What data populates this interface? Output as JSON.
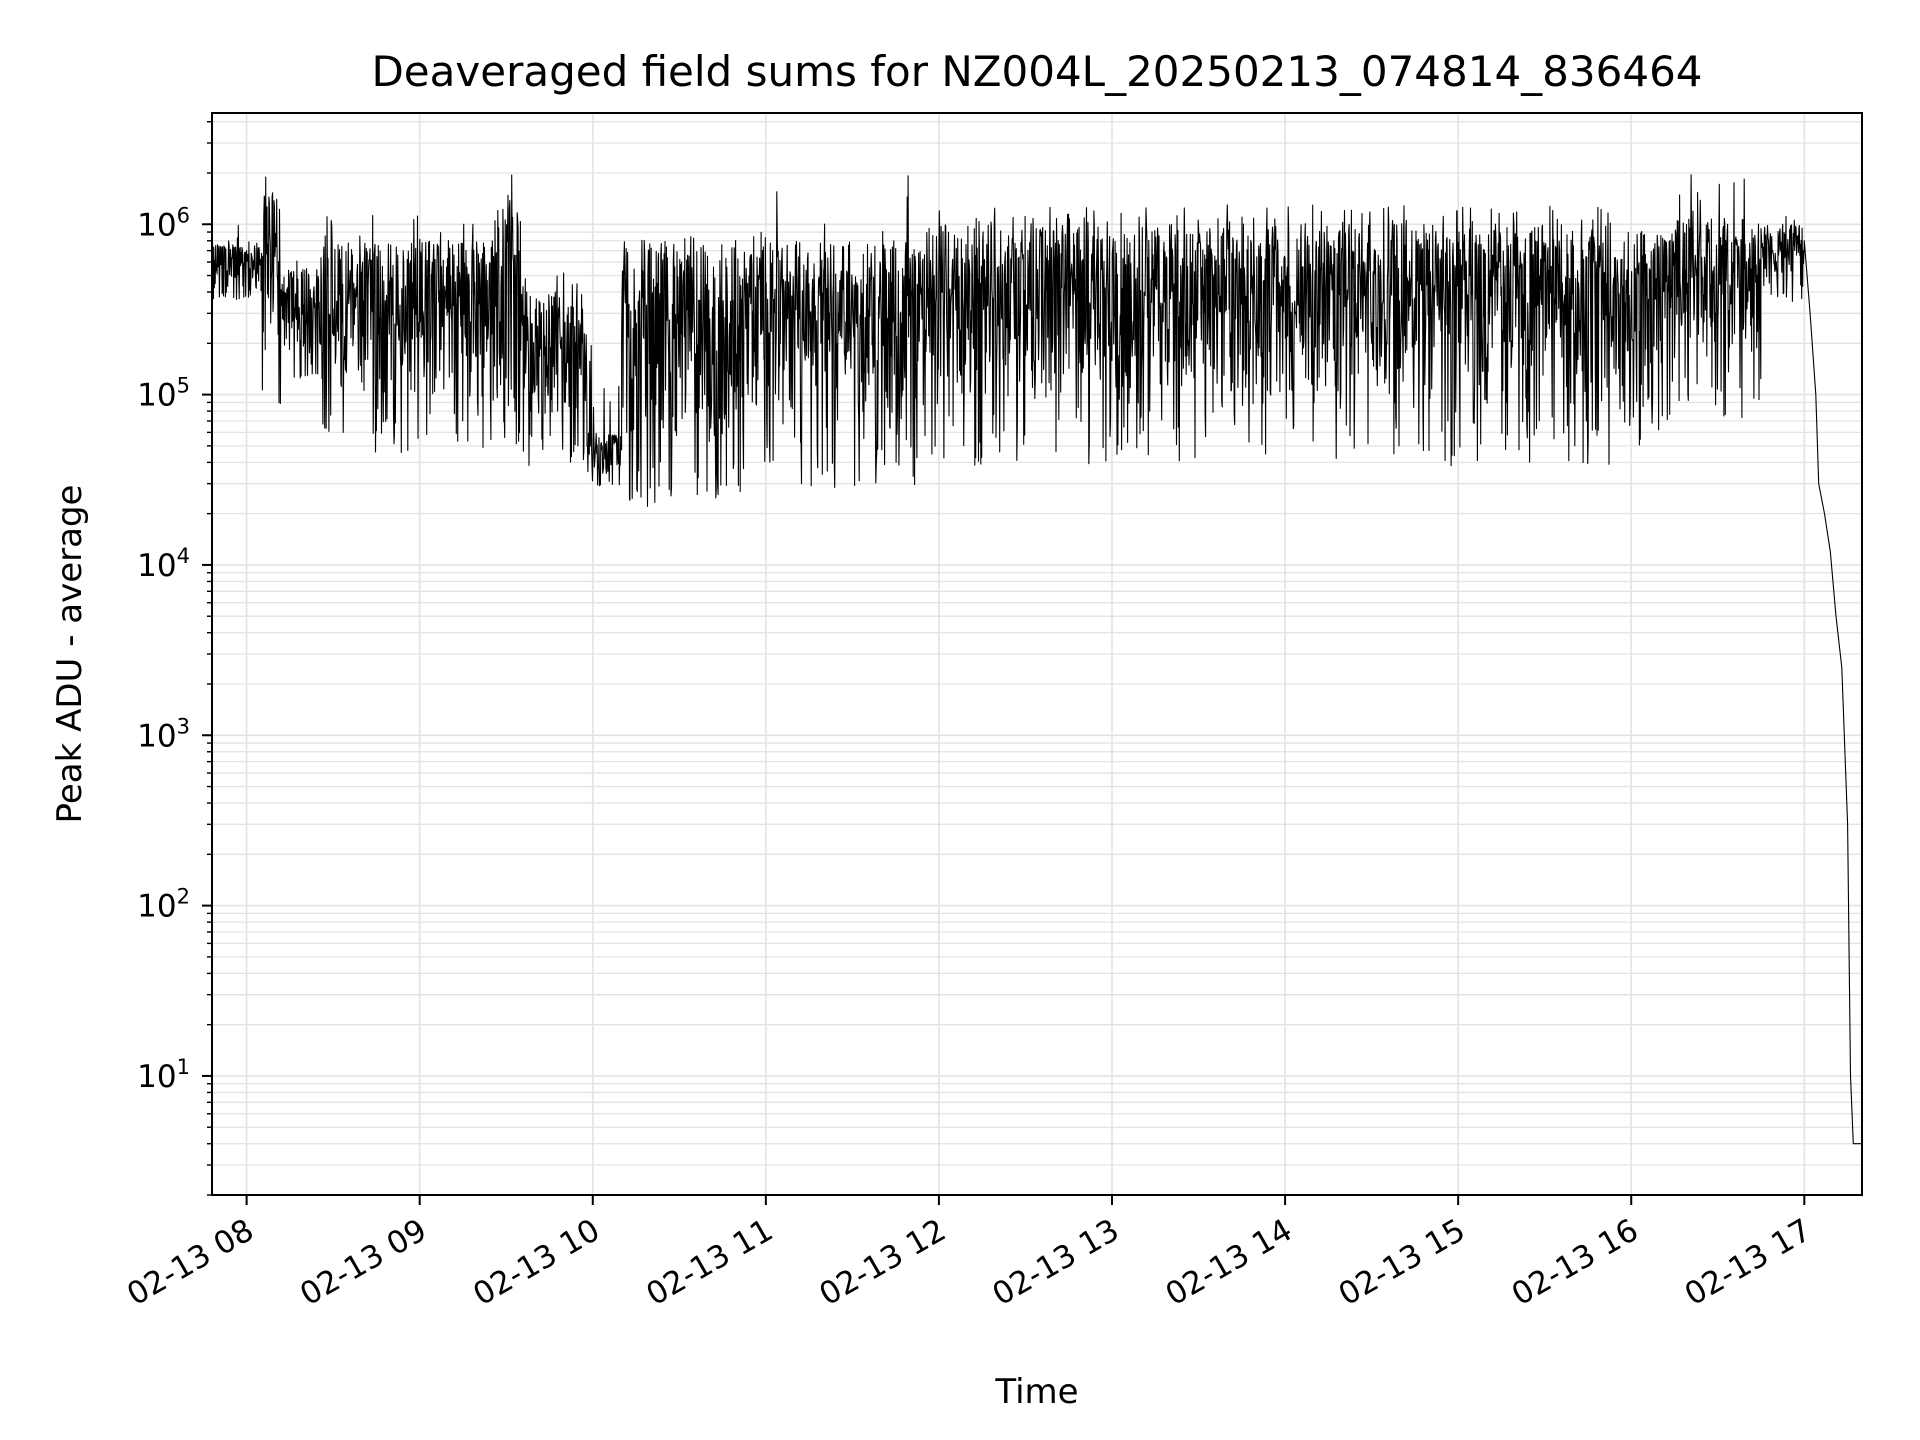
{
  "chart_data": {
    "type": "line",
    "title": "Deaveraged field sums for NZ004L_20250213_074814_836464",
    "xlabel": "Time",
    "ylabel": "Peak ADU - average",
    "yscale": "log",
    "ylim": [
      2.0,
      4500000
    ],
    "xlim": [
      "2025-02-13 07:48",
      "2025-02-13 17:20"
    ],
    "grid": true,
    "grid_minor": true,
    "line_color": "#000000",
    "grid_color": "#e3e3e3",
    "x_ticks": [
      {
        "t": "2025-02-13 08:00",
        "label": "02-13 08"
      },
      {
        "t": "2025-02-13 09:00",
        "label": "02-13 09"
      },
      {
        "t": "2025-02-13 10:00",
        "label": "02-13 10"
      },
      {
        "t": "2025-02-13 11:00",
        "label": "02-13 11"
      },
      {
        "t": "2025-02-13 12:00",
        "label": "02-13 12"
      },
      {
        "t": "2025-02-13 13:00",
        "label": "02-13 13"
      },
      {
        "t": "2025-02-13 14:00",
        "label": "02-13 14"
      },
      {
        "t": "2025-02-13 15:00",
        "label": "02-13 15"
      },
      {
        "t": "2025-02-13 16:00",
        "label": "02-13 16"
      },
      {
        "t": "2025-02-13 17:00",
        "label": "02-13 17"
      }
    ],
    "y_ticks": [
      {
        "value": 10,
        "base": "10",
        "exp": "1"
      },
      {
        "value": 100,
        "base": "10",
        "exp": "2"
      },
      {
        "value": 1000,
        "base": "10",
        "exp": "3"
      },
      {
        "value": 10000,
        "base": "10",
        "exp": "4"
      },
      {
        "value": 100000,
        "base": "10",
        "exp": "5"
      },
      {
        "value": 1000000,
        "base": "10",
        "exp": "6"
      }
    ],
    "series": [
      {
        "style": "noisy-band",
        "segments": [
          {
            "t0": "2025-02-13 07:48",
            "t1": "2025-02-13 08:05",
            "upper": 800000,
            "lower": 380000,
            "spike_max": 1000000,
            "dip_min": 360000
          },
          {
            "t0": "2025-02-13 08:05",
            "t1": "2025-02-13 08:12",
            "upper": 1500000,
            "lower": 200000,
            "spike_max": 1900000,
            "dip_min": 80000
          },
          {
            "t0": "2025-02-13 08:12",
            "t1": "2025-02-13 08:25",
            "upper": 550000,
            "lower": 150000,
            "spike_max": 650000,
            "dip_min": 120000
          },
          {
            "t0": "2025-02-13 08:25",
            "t1": "2025-02-13 09:25",
            "upper": 800000,
            "lower": 80000,
            "spike_max": 1200000,
            "dip_min": 45000
          },
          {
            "t0": "2025-02-13 09:25",
            "t1": "2025-02-13 09:35",
            "upper": 1500000,
            "lower": 80000,
            "spike_max": 2100000,
            "dip_min": 50000
          },
          {
            "t0": "2025-02-13 09:35",
            "t1": "2025-02-13 09:58",
            "upper": 400000,
            "lower": 60000,
            "spike_max": 550000,
            "dip_min": 38000
          },
          {
            "t0": "2025-02-13 09:58",
            "t1": "2025-02-13 10:10",
            "upper": 60000,
            "lower": 30000,
            "spike_max": 250000,
            "dip_min": 29000
          },
          {
            "t0": "2025-02-13 10:10",
            "t1": "2025-02-13 10:55",
            "upper": 800000,
            "lower": 30000,
            "spike_max": 850000,
            "dip_min": 22000
          },
          {
            "t0": "2025-02-13 10:55",
            "t1": "2025-02-13 11:05",
            "upper": 900000,
            "lower": 60000,
            "spike_max": 1600000,
            "dip_min": 40000
          },
          {
            "t0": "2025-02-13 11:05",
            "t1": "2025-02-13 11:55",
            "upper": 800000,
            "lower": 60000,
            "spike_max": 2500000,
            "dip_min": 28000
          },
          {
            "t0": "2025-02-13 11:55",
            "t1": "2025-02-13 15:55",
            "upper": 1000000,
            "lower": 80000,
            "spike_max": 1300000,
            "dip_min": 38000
          },
          {
            "t0": "2025-02-13 15:55",
            "t1": "2025-02-13 16:05",
            "upper": 900000,
            "lower": 100000,
            "spike_max": 1000000,
            "dip_min": 50000
          },
          {
            "t0": "2025-02-13 16:05",
            "t1": "2025-02-13 16:15",
            "upper": 900000,
            "lower": 100000,
            "spike_max": 1000000,
            "dip_min": 60000
          },
          {
            "t0": "2025-02-13 16:15",
            "t1": "2025-02-13 16:45",
            "upper": 1100000,
            "lower": 150000,
            "spike_max": 2200000,
            "dip_min": 70000
          },
          {
            "t0": "2025-02-13 16:45",
            "t1": "2025-02-13 17:00",
            "upper": 1000000,
            "lower": 400000,
            "spike_max": 1200000,
            "dip_min": 350000
          }
        ],
        "tail": [
          {
            "t": "2025-02-13 17:00",
            "y": 800000
          },
          {
            "t": "2025-02-13 17:02",
            "y": 300000
          },
          {
            "t": "2025-02-13 17:04",
            "y": 100000
          },
          {
            "t": "2025-02-13 17:05",
            "y": 30000
          },
          {
            "t": "2025-02-13 17:07",
            "y": 20000
          },
          {
            "t": "2025-02-13 17:09",
            "y": 12000
          },
          {
            "t": "2025-02-13 17:11",
            "y": 5000
          },
          {
            "t": "2025-02-13 17:13",
            "y": 2500
          },
          {
            "t": "2025-02-13 17:15",
            "y": 300
          },
          {
            "t": "2025-02-13 17:16",
            "y": 10
          },
          {
            "t": "2025-02-13 17:17",
            "y": 4
          },
          {
            "t": "2025-02-13 17:20",
            "y": 4
          }
        ]
      }
    ]
  }
}
